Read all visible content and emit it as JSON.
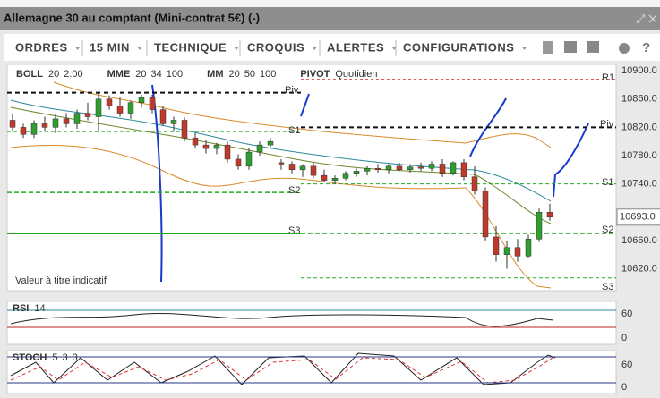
{
  "window": {
    "title": "Allemagne 30 au comptant (Mini-contrat 5€) (-)"
  },
  "toolbar": {
    "items": [
      "ORDRES",
      "15 MIN",
      "TECHNIQUE",
      "CROQUIS",
      "ALERTES",
      "CONFIGURATIONS"
    ]
  },
  "chart": {
    "indicators": [
      {
        "name": "BOLL",
        "params": [
          "20",
          "2.00"
        ]
      },
      {
        "name": "MME",
        "params": [
          "20",
          "34",
          "100"
        ]
      },
      {
        "name": "MM",
        "params": [
          "20",
          "50",
          "100"
        ]
      },
      {
        "name": "PIVOT",
        "params": [
          "Quotidien"
        ]
      }
    ],
    "ylim": [
      10909,
      10589
    ],
    "yticks": [
      {
        "value": 10900,
        "label": "10900.0"
      },
      {
        "value": 10860,
        "label": "10860.0"
      },
      {
        "value": 10820,
        "label": "10820.0"
      },
      {
        "value": 10780,
        "label": "10780.0"
      },
      {
        "value": 10740,
        "label": "10740.0"
      },
      {
        "value": 10660,
        "label": "10660.0"
      },
      {
        "value": 10620,
        "label": "10620.0"
      }
    ],
    "current_price": {
      "value": 10693,
      "label": "10693.0"
    },
    "levels": [
      {
        "label": "Piv",
        "value": 10869
      },
      {
        "label": "S1",
        "value": 10814
      },
      {
        "label": "S2",
        "value": 10728
      },
      {
        "label": "S3",
        "value": 10670
      },
      {
        "label": "R1",
        "value": 10888
      },
      {
        "label": "Piv",
        "value": 10820
      },
      {
        "label": "S1",
        "value": 10740
      },
      {
        "label": "S2",
        "value": 10670
      },
      {
        "label": "S3",
        "value": 10607
      }
    ],
    "note": "Valeur à titre indicatif",
    "candles": [
      [
        10830,
        10840,
        10815,
        10820
      ],
      [
        10820,
        10825,
        10805,
        10810
      ],
      [
        10810,
        10830,
        10805,
        10825
      ],
      [
        10825,
        10835,
        10815,
        10820
      ],
      [
        10820,
        10838,
        10812,
        10832
      ],
      [
        10832,
        10840,
        10820,
        10825
      ],
      [
        10825,
        10845,
        10818,
        10840
      ],
      [
        10840,
        10855,
        10830,
        10835
      ],
      [
        10835,
        10868,
        10815,
        10860
      ],
      [
        10860,
        10865,
        10845,
        10850
      ],
      [
        10850,
        10862,
        10835,
        10840
      ],
      [
        10840,
        10858,
        10832,
        10855
      ],
      [
        10855,
        10866,
        10848,
        10862
      ],
      [
        10862,
        10866,
        10840,
        10845
      ],
      [
        10845,
        10850,
        10822,
        10825
      ],
      [
        10825,
        10835,
        10815,
        10830
      ],
      [
        10830,
        10834,
        10800,
        10805
      ],
      [
        10805,
        10812,
        10790,
        10795
      ],
      [
        10795,
        10802,
        10783,
        10790
      ],
      [
        10790,
        10798,
        10782,
        10795
      ],
      [
        10795,
        10800,
        10770,
        10775
      ],
      [
        10775,
        10782,
        10760,
        10765
      ],
      [
        10765,
        10790,
        10760,
        10785
      ],
      [
        10785,
        10800,
        10780,
        10795
      ],
      [
        10795,
        10805,
        10792,
        10800
      ],
      [
        10770,
        10775,
        10760,
        10768
      ],
      [
        10768,
        10772,
        10755,
        10760
      ],
      [
        10760,
        10768,
        10750,
        10765
      ],
      [
        10765,
        10770,
        10748,
        10752
      ],
      [
        10752,
        10760,
        10742,
        10745
      ],
      [
        10745,
        10752,
        10740,
        10748
      ],
      [
        10748,
        10758,
        10745,
        10755
      ],
      [
        10755,
        10762,
        10750,
        10758
      ],
      [
        10758,
        10765,
        10752,
        10762
      ],
      [
        10762,
        10768,
        10756,
        10760
      ],
      [
        10760,
        10768,
        10755,
        10765
      ],
      [
        10765,
        10770,
        10758,
        10760
      ],
      [
        10760,
        10768,
        10756,
        10764
      ],
      [
        10764,
        10770,
        10758,
        10762
      ],
      [
        10762,
        10772,
        10758,
        10768
      ],
      [
        10768,
        10775,
        10750,
        10755
      ],
      [
        10755,
        10772,
        10752,
        10770
      ],
      [
        10770,
        10775,
        10745,
        10750
      ],
      [
        10750,
        10765,
        10725,
        10730
      ],
      [
        10730,
        10735,
        10660,
        10665
      ],
      [
        10665,
        10680,
        10630,
        10640
      ],
      [
        10640,
        10660,
        10620,
        10650
      ],
      [
        10650,
        10662,
        10630,
        10638
      ],
      [
        10638,
        10668,
        10635,
        10662
      ],
      [
        10662,
        10705,
        10658,
        10700
      ],
      [
        10700,
        10712,
        10688,
        10693
      ]
    ]
  },
  "rsi": {
    "name": "RSI",
    "params": [
      "14"
    ],
    "yticks": [
      60,
      0
    ]
  },
  "stoch": {
    "name": "STOCH",
    "params": [
      "5",
      "3",
      "3"
    ],
    "yticks": [
      60,
      0
    ]
  }
}
